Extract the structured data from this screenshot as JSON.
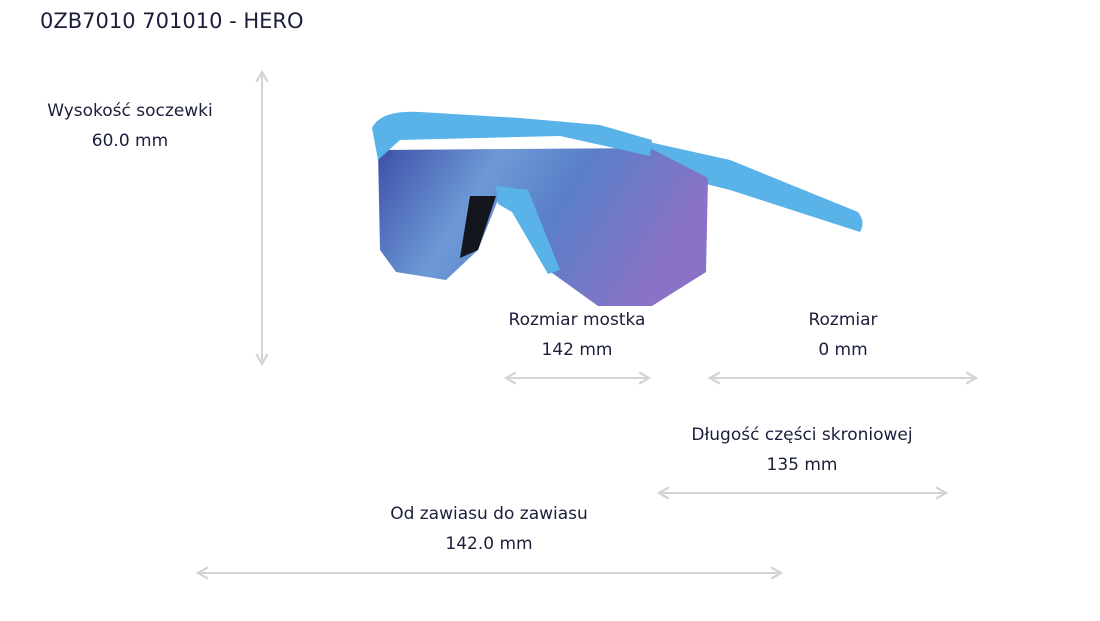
{
  "header": {
    "title": "0ZB7010 701010 - HERO"
  },
  "measurements": [
    {
      "label": "Wysokość soczewki",
      "value": "60.0 mm"
    },
    {
      "label": "Rozmiar mostka",
      "value": "142 mm"
    },
    {
      "label": "Rozmiar",
      "value": "0 mm"
    },
    {
      "label": "Długość części skroniowej",
      "value": "135 mm"
    },
    {
      "label": "Od zawiasu do zawiasu",
      "value": "142.0 mm"
    }
  ]
}
